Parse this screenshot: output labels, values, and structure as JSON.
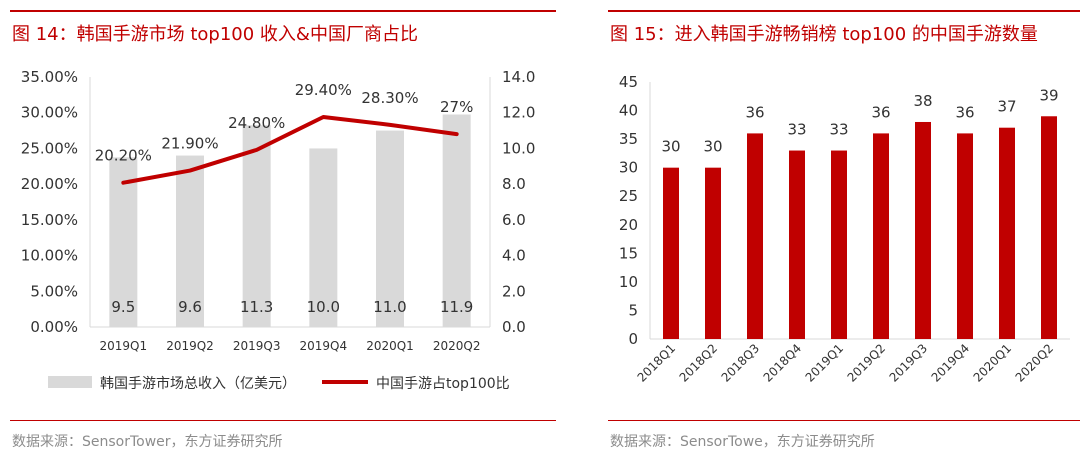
{
  "left": {
    "title": "图 14：韩国手游市场 top100 收入&中国厂商占比",
    "source": "数据来源：SensorTower，东方证券研究所"
  },
  "right": {
    "title": "图 15：进入韩国手游畅销榜 top100 的中国手游数量",
    "source": "数据来源：SensorTowe，东方证券研究所"
  },
  "colors": {
    "accent": "#c00000",
    "bar_gray": "#d9d9d9",
    "bar_red": "#c00000",
    "axis": "#d9d9d9"
  },
  "chart_data": [
    {
      "type": "bar",
      "categories": [
        "2019Q1",
        "2019Q2",
        "2019Q3",
        "2019Q4",
        "2020Q1",
        "2020Q2"
      ],
      "series": [
        {
          "name": "韩国手游市场总收入（亿美元）",
          "type": "bar",
          "axis": "right",
          "values": [
            9.5,
            9.6,
            11.3,
            10.0,
            11.0,
            11.9
          ],
          "labels": [
            "9.5",
            "9.6",
            "11.3",
            "10.0",
            "11.0",
            "11.9"
          ]
        },
        {
          "name": "中国手游占top100比",
          "type": "line",
          "axis": "left",
          "values": [
            20.2,
            21.9,
            24.8,
            29.4,
            28.3,
            27.0
          ],
          "labels": [
            "20.20%",
            "21.90%",
            "24.80%",
            "29.40%",
            "28.30%",
            "27%"
          ]
        }
      ],
      "y_left": {
        "range": [
          0,
          35
        ],
        "ticks": [
          "0.00%",
          "5.00%",
          "10.00%",
          "15.00%",
          "20.00%",
          "25.00%",
          "30.00%",
          "35.00%"
        ]
      },
      "y_right": {
        "range": [
          0,
          14
        ],
        "ticks": [
          "0.0",
          "2.0",
          "4.0",
          "6.0",
          "8.0",
          "10.0",
          "12.0",
          "14.0"
        ]
      },
      "grid": false,
      "legend": "bottom"
    },
    {
      "type": "bar",
      "categories": [
        "2018Q1",
        "2018Q2",
        "2018Q3",
        "2018Q4",
        "2019Q1",
        "2019Q2",
        "2019Q3",
        "2019Q4",
        "2020Q1",
        "2020Q2"
      ],
      "values": [
        30,
        30,
        36,
        33,
        33,
        36,
        38,
        36,
        37,
        39
      ],
      "labels": [
        "30",
        "30",
        "36",
        "33",
        "33",
        "36",
        "38",
        "36",
        "37",
        "39"
      ],
      "y": {
        "range": [
          0,
          45
        ],
        "ticks": [
          "0",
          "5",
          "10",
          "15",
          "20",
          "25",
          "30",
          "35",
          "40",
          "45"
        ]
      },
      "grid": false,
      "legend": "none"
    }
  ]
}
